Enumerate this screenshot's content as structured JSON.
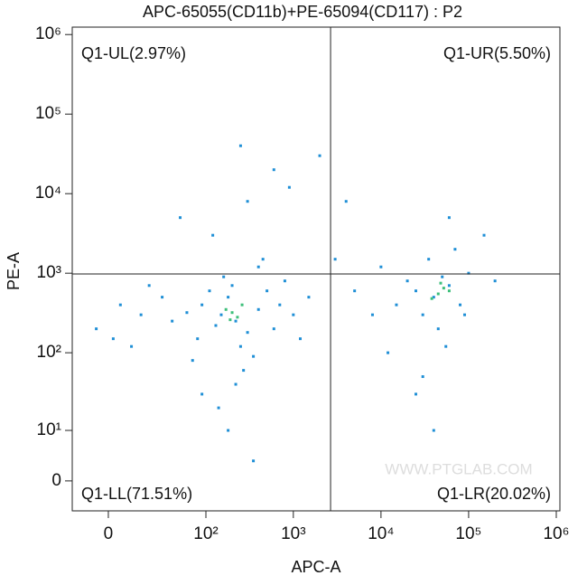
{
  "chart_data": {
    "type": "scatter",
    "title": "APC-65055(CD11b)+PE-65094(CD117) : P2",
    "x_label": "APC-A",
    "y_label": "PE-A",
    "x_scale": "biexponential",
    "y_scale": "biexponential",
    "xlim": [
      -17,
      1100000
    ],
    "ylim": [
      -4.8,
      1240000
    ],
    "xticks": [
      0,
      {
        "value": 100,
        "label": "10²"
      },
      {
        "value": 1000,
        "label": "10³"
      },
      {
        "value": 10000,
        "label": "10⁴"
      },
      {
        "value": 100000,
        "label": "10⁵"
      },
      {
        "value": 1000000,
        "label": "10⁶"
      }
    ],
    "yticks": [
      0,
      {
        "value": 10,
        "label": "10¹"
      },
      {
        "value": 100,
        "label": "10²"
      },
      {
        "value": 1000,
        "label": "10³"
      },
      {
        "value": 10000,
        "label": "10⁴"
      },
      {
        "value": 100000,
        "label": "10⁵"
      },
      {
        "value": 1000000,
        "label": "10⁶"
      }
    ],
    "gate": {
      "x": 2660,
      "y": 980
    },
    "quadrants": {
      "UL": "Q1-UL(2.97%)",
      "UR": "Q1-UR(5.50%)",
      "LL": "Q1-LL(71.51%)",
      "LR": "Q1-LR(20.02%)"
    },
    "watermark": "WWW.PTGLAB.COM",
    "series": [
      {
        "color": "#1f8fd6",
        "x": [
          150,
          220,
          90,
          300,
          180,
          60,
          400,
          250,
          130,
          500,
          80,
          200,
          350,
          110,
          40,
          700,
          270,
          160,
          600,
          30,
          1000,
          220,
          140,
          70,
          450,
          15,
          5,
          -5,
          2,
          800,
          1500,
          120,
          300,
          600,
          250,
          900,
          50,
          2000,
          180,
          350,
          1200,
          20,
          10,
          90,
          400,
          40000,
          60000,
          30000,
          50000,
          25000,
          80000,
          35000,
          70000,
          45000,
          20000,
          100000,
          55000,
          15000,
          150000,
          30000,
          60000,
          10000,
          8000,
          5000,
          12000,
          200000,
          90000,
          40000,
          3000,
          4000,
          25000
        ],
        "y": [
          300,
          250,
          400,
          180,
          500,
          320,
          350,
          120,
          220,
          600,
          150,
          700,
          90,
          600,
          250,
          400,
          60,
          900,
          200,
          500,
          300,
          40,
          20,
          80,
          1500,
          300,
          400,
          200,
          150,
          800,
          500,
          3000,
          8000,
          20000,
          40000,
          12000,
          5000,
          30000,
          10,
          3,
          150,
          700,
          120,
          30,
          1200,
          500,
          700,
          300,
          900,
          600,
          400,
          1500,
          2000,
          200,
          800,
          1000,
          120,
          400,
          3000,
          50,
          5000,
          1200,
          300,
          600,
          100,
          800,
          300,
          10,
          1500,
          8000,
          30
        ]
      },
      {
        "color": "#3dbf7a",
        "x": [
          200,
          230,
          170,
          260,
          190,
          45000,
          52000,
          38000,
          60000,
          48000
        ],
        "y": [
          320,
          280,
          350,
          400,
          260,
          550,
          650,
          480,
          600,
          750
        ]
      }
    ]
  }
}
